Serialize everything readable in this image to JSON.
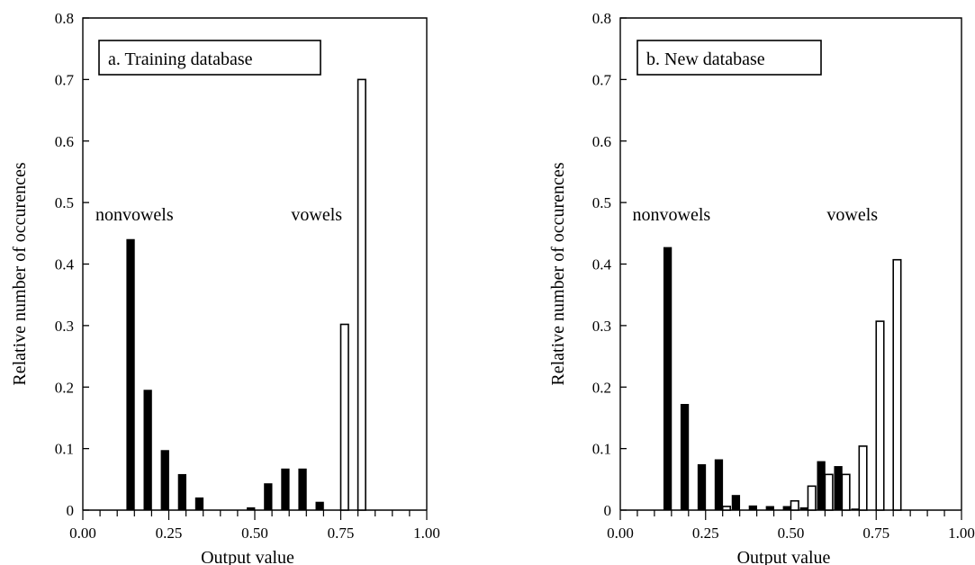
{
  "chart_data": [
    {
      "type": "bar",
      "panel_label": "a.  Training database",
      "xlabel": "Output value",
      "ylabel": "Relative number of occurences",
      "xlim": [
        0.0,
        1.0
      ],
      "ylim": [
        0.0,
        0.8
      ],
      "xticks": [
        "0.00",
        "0.25",
        "0.50",
        "0.75",
        "1.00"
      ],
      "yticks": [
        "0",
        "0.1",
        "0.2",
        "0.3",
        "0.4",
        "0.5",
        "0.6",
        "0.7",
        "0.8"
      ],
      "annotations": [
        {
          "text": "nonvowels",
          "x": 0.15,
          "y": 0.48
        },
        {
          "text": "vowels",
          "x": 0.68,
          "y": 0.48
        }
      ],
      "series": [
        {
          "fill": "#000000",
          "x": [
            0.15,
            0.2,
            0.25,
            0.3,
            0.35,
            0.5,
            0.55,
            0.6,
            0.65,
            0.7
          ],
          "values": [
            0.44,
            0.195,
            0.097,
            0.058,
            0.02,
            0.004,
            0.043,
            0.067,
            0.067,
            0.013
          ]
        },
        {
          "fill": "#ffffff",
          "x": [
            0.75,
            0.8
          ],
          "values": [
            0.302,
            0.7
          ]
        }
      ]
    },
    {
      "type": "bar",
      "panel_label": "b.  New database",
      "xlabel": "Output value",
      "ylabel": "Relative number of occurences",
      "xlim": [
        0.0,
        1.0
      ],
      "ylim": [
        0.0,
        0.8
      ],
      "xticks": [
        "0.00",
        "0.25",
        "0.50",
        "0.75",
        "1.00"
      ],
      "yticks": [
        "0",
        "0.1",
        "0.2",
        "0.3",
        "0.4",
        "0.5",
        "0.6",
        "0.7",
        "0.8"
      ],
      "annotations": [
        {
          "text": "nonvowels",
          "x": 0.15,
          "y": 0.48
        },
        {
          "text": "vowels",
          "x": 0.68,
          "y": 0.48
        }
      ],
      "series": [
        {
          "fill": "#000000",
          "x": [
            0.15,
            0.2,
            0.25,
            0.3,
            0.35,
            0.4,
            0.45,
            0.5,
            0.55,
            0.6,
            0.65,
            0.7
          ],
          "values": [
            0.427,
            0.172,
            0.074,
            0.082,
            0.024,
            0.007,
            0.006,
            0.006,
            0.004,
            0.079,
            0.071,
            0.002
          ]
        },
        {
          "fill": "#ffffff",
          "x": [
            0.3,
            0.5,
            0.55,
            0.6,
            0.65,
            0.7,
            0.75,
            0.8
          ],
          "values": [
            0.006,
            0.015,
            0.039,
            0.058,
            0.058,
            0.104,
            0.307,
            0.407
          ]
        }
      ]
    }
  ]
}
